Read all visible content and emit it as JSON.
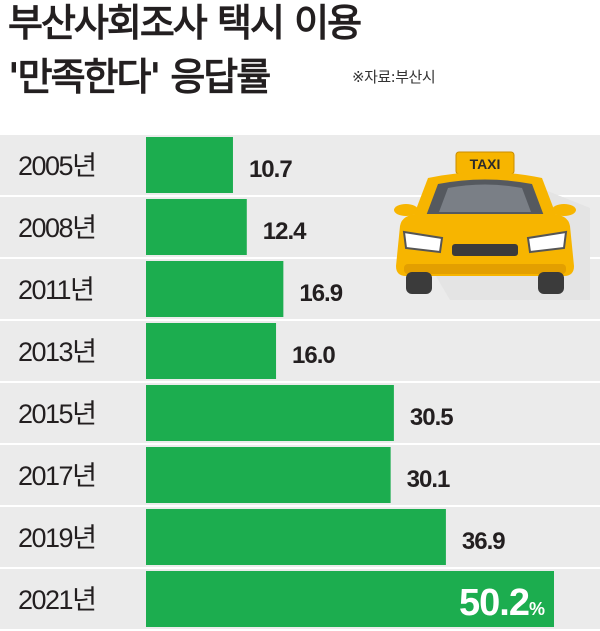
{
  "title": {
    "line1": "부산사회조사 택시 이용",
    "line2": "'만족한다' 응답률"
  },
  "source": "※자료:부산시",
  "colors": {
    "bar": "#1cad4f",
    "band": "#ebebeb",
    "text": "#231f20",
    "highlight_text": "#ffffff",
    "taxi_body": "#f7b500"
  },
  "icon": "taxi-icon",
  "taxi_sign": "TAXI",
  "chart_data": {
    "type": "bar",
    "orientation": "horizontal",
    "categories": [
      "2005년",
      "2008년",
      "2011년",
      "2013년",
      "2015년",
      "2017년",
      "2019년",
      "2021년"
    ],
    "values": [
      10.7,
      12.4,
      16.9,
      16.0,
      30.5,
      30.1,
      36.9,
      50.2
    ],
    "value_labels": [
      "10.7",
      "12.4",
      "16.9",
      "16.0",
      "30.5",
      "30.1",
      "36.9",
      "50.2"
    ],
    "unit": "%",
    "xlim": [
      0,
      50.2
    ],
    "highlight_index": 7
  }
}
